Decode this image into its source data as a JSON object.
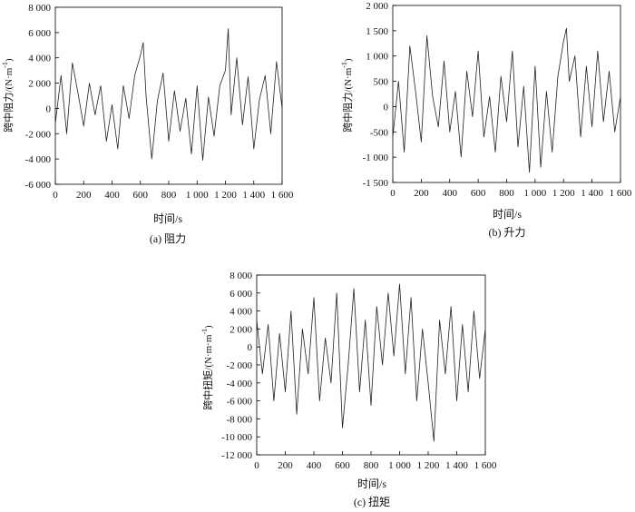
{
  "chart_data": [
    {
      "type": "line",
      "panel_caption": "(a) 阻力",
      "xlabel": "时间/s",
      "ylabel": "跨中阻力/(N·m",
      "ylabel_sup": "-1",
      "ylabel_close": ")",
      "xlim": [
        0,
        1600
      ],
      "ylim": [
        -6000,
        8000
      ],
      "xticks": [
        0,
        200,
        400,
        600,
        800,
        1000,
        1200,
        1400,
        1600
      ],
      "xtick_labels": [
        "0",
        "200",
        "400",
        "600",
        "800",
        "1 000",
        "1 200",
        "1 400",
        "1 600"
      ],
      "yticks": [
        -6000,
        -4000,
        -2000,
        0,
        2000,
        4000,
        6000,
        8000
      ],
      "ytick_labels": [
        "-6 000",
        "-4 000",
        "-2 000",
        "0",
        "2 000",
        "4 000",
        "6 000",
        "8 000"
      ],
      "grid": false,
      "series": [
        {
          "color": "#222222",
          "x": [
            0,
            40,
            80,
            120,
            160,
            200,
            240,
            280,
            320,
            360,
            400,
            440,
            480,
            520,
            560,
            600,
            620,
            640,
            680,
            720,
            760,
            800,
            840,
            880,
            920,
            960,
            1000,
            1040,
            1080,
            1120,
            1160,
            1200,
            1220,
            1240,
            1280,
            1320,
            1360,
            1400,
            1440,
            1480,
            1520,
            1560,
            1600
          ],
          "y": [
            -1200,
            2600,
            -2000,
            3600,
            1200,
            -1400,
            2000,
            -500,
            1800,
            -2600,
            300,
            -3200,
            1800,
            -800,
            2600,
            4200,
            5200,
            1000,
            -4000,
            600,
            2800,
            -2600,
            1400,
            -1800,
            800,
            -3600,
            1800,
            -4100,
            900,
            -2200,
            1800,
            3000,
            6300,
            -500,
            4000,
            -1300,
            2500,
            -3200,
            700,
            2600,
            -2000,
            3700,
            0
          ]
        }
      ]
    },
    {
      "type": "line",
      "panel_caption": "(b) 升力",
      "xlabel": "时间/s",
      "ylabel": "跨中阻力/(N·m",
      "ylabel_sup": "-1",
      "ylabel_close": ")",
      "xlim": [
        0,
        1600
      ],
      "ylim": [
        -1500,
        2000
      ],
      "xticks": [
        0,
        200,
        400,
        600,
        800,
        1000,
        1200,
        1400,
        1600
      ],
      "xtick_labels": [
        "0",
        "200",
        "400",
        "600",
        "800",
        "1 000",
        "1 200",
        "1 400",
        "1 600"
      ],
      "yticks": [
        -1500,
        -1000,
        -500,
        0,
        500,
        1000,
        1500,
        2000
      ],
      "ytick_labels": [
        "-1 500",
        "-1 000",
        "-500",
        "0",
        "500",
        "1 000",
        "1 500",
        "2 000"
      ],
      "grid": false,
      "series": [
        {
          "color": "#222222",
          "x": [
            0,
            40,
            80,
            120,
            160,
            200,
            240,
            280,
            320,
            360,
            400,
            440,
            480,
            520,
            560,
            600,
            640,
            680,
            720,
            760,
            800,
            840,
            880,
            920,
            960,
            1000,
            1040,
            1080,
            1120,
            1160,
            1200,
            1220,
            1240,
            1280,
            1320,
            1360,
            1400,
            1440,
            1480,
            1520,
            1560,
            1600
          ],
          "y": [
            -600,
            500,
            -900,
            1200,
            300,
            -700,
            1400,
            200,
            -400,
            900,
            -500,
            300,
            -1000,
            700,
            -200,
            1100,
            -600,
            200,
            -900,
            600,
            -300,
            1100,
            -800,
            400,
            -1300,
            800,
            -1200,
            300,
            -900,
            600,
            1300,
            1550,
            500,
            1000,
            -600,
            800,
            -400,
            1100,
            -300,
            700,
            -500,
            200
          ]
        }
      ]
    },
    {
      "type": "line",
      "panel_caption": "(c) 扭矩",
      "xlabel": "时间/s",
      "ylabel": "跨中扭矩/(N·m·m",
      "ylabel_sup": "-1",
      "ylabel_close": ")",
      "xlim": [
        0,
        1600
      ],
      "ylim": [
        -12000,
        8000
      ],
      "xticks": [
        0,
        200,
        400,
        600,
        800,
        1000,
        1200,
        1400,
        1600
      ],
      "xtick_labels": [
        "0",
        "200",
        "400",
        "600",
        "800",
        "1 000",
        "1 200",
        "1 400",
        "1 600"
      ],
      "yticks": [
        -12000,
        -10000,
        -8000,
        -6000,
        -4000,
        -2000,
        0,
        2000,
        4000,
        6000,
        8000
      ],
      "ytick_labels": [
        "-12 000",
        "-10 000",
        "-8 000",
        "-6 000",
        "-4 000",
        "-2 000",
        "0",
        "2 000",
        "4 000",
        "6 000",
        "8 000"
      ],
      "grid": false,
      "series": [
        {
          "color": "#222222",
          "x": [
            0,
            40,
            80,
            120,
            160,
            200,
            240,
            280,
            320,
            360,
            400,
            440,
            480,
            520,
            560,
            600,
            640,
            680,
            720,
            760,
            800,
            840,
            880,
            920,
            960,
            1000,
            1040,
            1080,
            1120,
            1160,
            1200,
            1240,
            1280,
            1320,
            1360,
            1400,
            1440,
            1480,
            1520,
            1560,
            1600
          ],
          "y": [
            3000,
            -3000,
            2500,
            -6000,
            1500,
            -5000,
            4000,
            -7500,
            2000,
            -3000,
            5500,
            -6000,
            1000,
            -4000,
            6000,
            -9000,
            -2000,
            6500,
            -5000,
            3000,
            -6500,
            4500,
            -2000,
            6000,
            -1000,
            7000,
            -3000,
            5500,
            -6000,
            2000,
            -4000,
            -10500,
            3000,
            -3000,
            4500,
            -6000,
            2500,
            -5000,
            4000,
            -3500,
            2000
          ]
        }
      ]
    }
  ]
}
